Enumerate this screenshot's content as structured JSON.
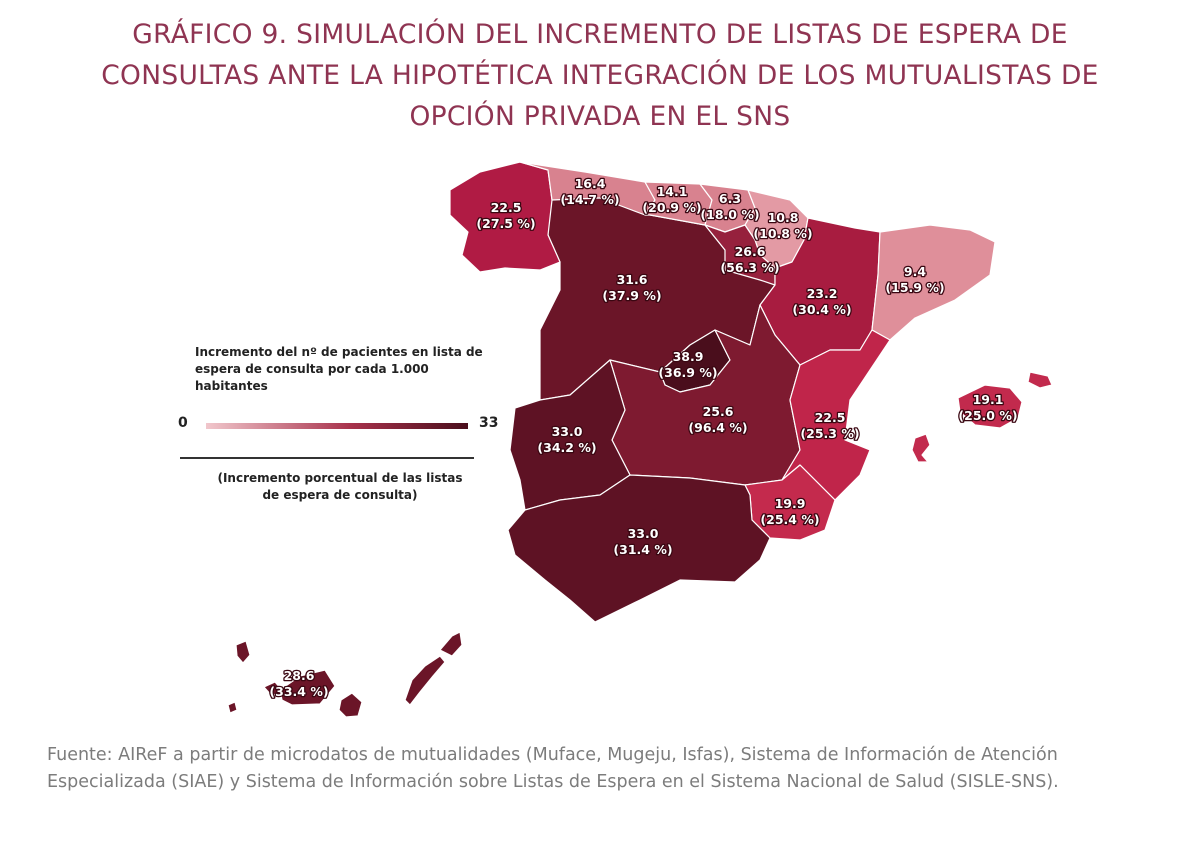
{
  "title_lines": [
    "GRÁFICO 9.  SIMULACIÓN DEL INCREMENTO DE LISTAS DE ESPERA DE",
    "CONSULTAS ANTE LA HIPOTÉTICA INTEGRACIÓN DE LOS MUTUALISTAS DE",
    "OPCIÓN PRIVADA EN EL SNS"
  ],
  "legend": {
    "title": "Incremento del nº de pacientes en lista de espera de consulta por cada 1.000 habitantes",
    "min": "0",
    "max": "33",
    "note_lines": [
      "(Incremento porcentual de las listas",
      "de espera de consulta)"
    ]
  },
  "colors": {
    "scale_low": "#efc2c7",
    "scale_mid": "#c22a4d",
    "scale_high": "#4a0e1c",
    "title": "#8f3452",
    "source": "#7c7c7c"
  },
  "regions": [
    {
      "id": "galicia",
      "value": "22.5",
      "pct": "(27.5 %)",
      "color": "#b01b44"
    },
    {
      "id": "asturias",
      "value": "16.4",
      "pct": "(14.7 %)",
      "color": "#d8828f"
    },
    {
      "id": "cantabria",
      "value": "14.1",
      "pct": "(20.9 %)",
      "color": "#d8828f"
    },
    {
      "id": "pais-vasco",
      "value": "6.3",
      "pct": "(18.0 %)",
      "color": "#d8828f"
    },
    {
      "id": "navarra",
      "value": "10.8",
      "pct": "(10.8 %)",
      "color": "#e39aa4"
    },
    {
      "id": "la-rioja",
      "value": "26.6",
      "pct": "(56.3 %)",
      "color": "#96213d"
    },
    {
      "id": "castilla-leon",
      "value": "31.6",
      "pct": "(37.9 %)",
      "color": "#6b1528"
    },
    {
      "id": "aragon",
      "value": "23.2",
      "pct": "(30.4 %)",
      "color": "#a81c40"
    },
    {
      "id": "cataluna",
      "value": "9.4",
      "pct": "(15.9 %)",
      "color": "#df8f9a"
    },
    {
      "id": "madrid",
      "value": "38.9",
      "pct": "(36.9 %)",
      "color": "#4a0e1c"
    },
    {
      "id": "castilla-la-mancha",
      "value": "25.6",
      "pct": "(96.4 %)",
      "color": "#7e1a30"
    },
    {
      "id": "comunidad-valenciana",
      "value": "22.5",
      "pct": "(25.3 %)",
      "color": "#c0254a"
    },
    {
      "id": "extremadura",
      "value": "33.0",
      "pct": "(34.2 %)",
      "color": "#5e1224"
    },
    {
      "id": "andalucia",
      "value": "33.0",
      "pct": "(31.4 %)",
      "color": "#5e1224"
    },
    {
      "id": "murcia",
      "value": "19.9",
      "pct": "(25.4 %)",
      "color": "#c42a4d"
    },
    {
      "id": "baleares",
      "value": "19.1",
      "pct": "(25.0 %)",
      "color": "#c22a4d"
    },
    {
      "id": "canarias",
      "value": "28.6",
      "pct": "(33.4 %)",
      "color": "#6b1528"
    }
  ],
  "source_text": "Fuente: AIReF a partir de microdatos de mutualidades (Muface, Mugeju, Isfas), Sistema de Información de Atención Especializada (SIAE) y Sistema de Información sobre Listas de Espera en el Sistema Nacional de Salud (SISLE-SNS)."
}
